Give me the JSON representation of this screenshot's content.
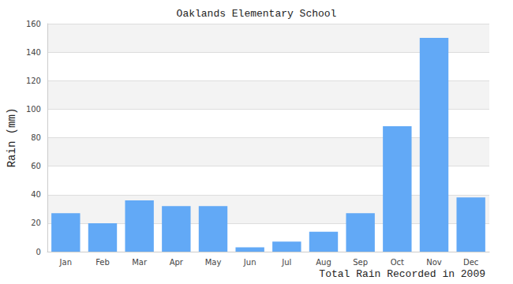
{
  "chart_data": {
    "type": "bar",
    "title": "Oaklands Elementary School",
    "x_label": "Total Rain Recorded in 2009",
    "y_label": "Rain (mm)",
    "categories": [
      "Jan",
      "Feb",
      "Mar",
      "Apr",
      "May",
      "Jun",
      "Jul",
      "Aug",
      "Sep",
      "Oct",
      "Nov",
      "Dec"
    ],
    "values": [
      27,
      20,
      36,
      32,
      32,
      3,
      7,
      14,
      27,
      88,
      150,
      38
    ],
    "color": "#62a9f6",
    "ylim": [
      0,
      160
    ],
    "yticks": [
      0,
      20,
      40,
      60,
      80,
      100,
      120,
      140,
      160
    ],
    "grid": true
  }
}
